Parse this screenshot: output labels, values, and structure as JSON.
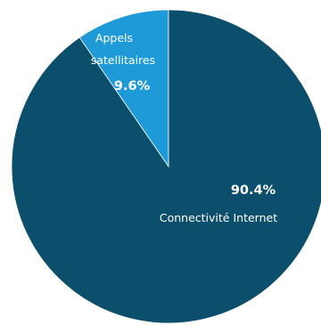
{
  "chart_data": {
    "type": "pie",
    "slices": [
      {
        "label_lines": [
          "Appels",
          "satellitaires"
        ],
        "value": 9.6,
        "value_label": "9.6%",
        "color": "#1e9ad8"
      },
      {
        "label_lines": [
          "Connectivité Internet"
        ],
        "value": 90.4,
        "value_label": "90.4%",
        "color": "#0b4f6c"
      }
    ],
    "start_angle": "12 o'clock",
    "direction": "counter-clockwise",
    "legend": "none",
    "title": ""
  }
}
